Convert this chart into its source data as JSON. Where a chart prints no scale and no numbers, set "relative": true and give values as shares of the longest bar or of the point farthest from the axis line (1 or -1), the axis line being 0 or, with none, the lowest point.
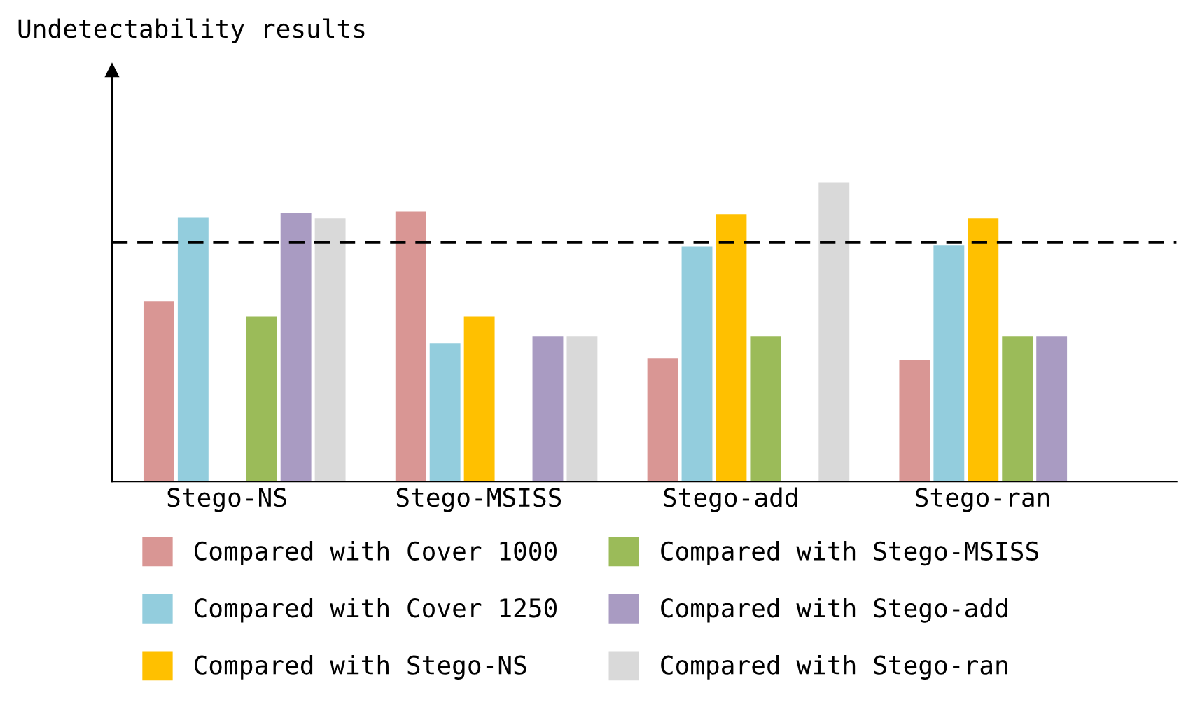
{
  "chart_data": {
    "type": "bar",
    "relative": true,
    "annotations": [
      "Undetectability results"
    ],
    "categories": [
      "Stego-NS",
      "Stego-MSISS",
      "Stego-add",
      "Stego-ran"
    ],
    "series": [
      {
        "name": "Compared with Cover 1000",
        "color": "#d99694",
        "values": [
          0.603,
          0.902,
          0.411,
          0.407
        ]
      },
      {
        "name": "Compared with Cover 1250",
        "color": "#93cddd",
        "values": [
          0.883,
          0.463,
          0.785,
          0.79
        ]
      },
      {
        "name": "Compared with Stego-NS",
        "color": "#ffc000",
        "values": [
          null,
          0.551,
          0.893,
          0.879
        ]
      },
      {
        "name": "Compared with Stego-MSISS",
        "color": "#9bbb59",
        "values": [
          0.551,
          null,
          0.486,
          0.486
        ]
      },
      {
        "name": "Compared with Stego-add",
        "color": "#a99bc2",
        "values": [
          0.897,
          0.486,
          null,
          0.486
        ]
      },
      {
        "name": "Compared with Stego-ran",
        "color": "#d9d9d9",
        "values": [
          0.879,
          0.486,
          1.0,
          null
        ]
      }
    ],
    "ref_lines": [
      {
        "axis": "y",
        "value": 0.799,
        "color": "#000000",
        "line_style": "dashed"
      }
    ],
    "legend": "bottom",
    "grid": false,
    "tick_labels": "x"
  }
}
